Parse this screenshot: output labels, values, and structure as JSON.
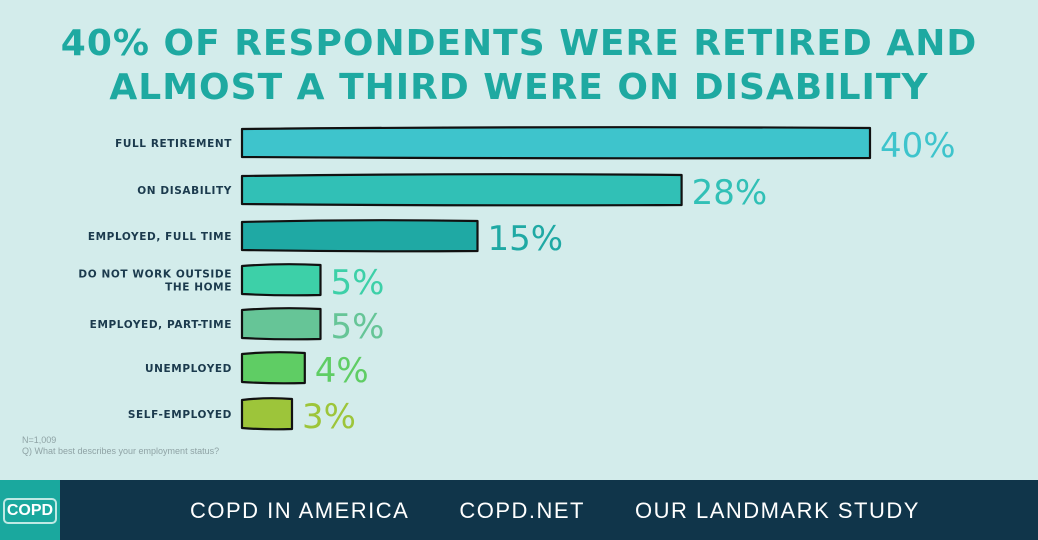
{
  "title_line1": "40% of respondents were retired and",
  "title_line2": "almost a third were on disability",
  "chart_data": {
    "type": "bar",
    "orientation": "horizontal",
    "title": "40% of respondents were retired and almost a third were on disability",
    "categories": [
      [
        "FULL RETIREMENT"
      ],
      [
        "ON DISABILITY"
      ],
      [
        "EMPLOYED, FULL TIME"
      ],
      [
        "DO NOT WORK OUTSIDE",
        "THE HOME"
      ],
      [
        "EMPLOYED, PART-TIME"
      ],
      [
        "UNEMPLOYED"
      ],
      [
        "SELF-EMPLOYED"
      ]
    ],
    "values": [
      40,
      28,
      15,
      5,
      5,
      4,
      3
    ],
    "value_labels": [
      "40%",
      "28%",
      "15%",
      "5%",
      "5%",
      "4%",
      "3%"
    ],
    "colors": [
      "#3ec4cc",
      "#31c0b6",
      "#1fa9a4",
      "#3dd0a8",
      "#66c597",
      "#5fcd64",
      "#9dc53a"
    ],
    "xlabel": "",
    "ylabel": ""
  },
  "notes": {
    "n": "N=1,009",
    "question": "Q) What best describes your employment status?"
  },
  "footer": {
    "logo": "COPD",
    "links": [
      "COPD IN AMERICA",
      "COPD.NET",
      "OUR LANDMARK STUDY"
    ]
  }
}
